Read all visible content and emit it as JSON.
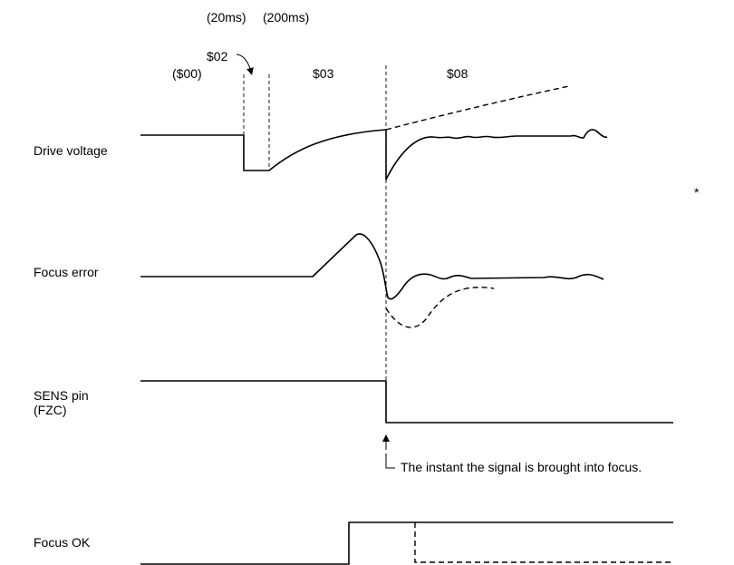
{
  "timing_labels": {
    "t1": "(20ms)",
    "t2": "(200ms)"
  },
  "state_labels": {
    "s02": "$02",
    "s00": "($00)",
    "s03": "$03",
    "s08": "$08"
  },
  "signals": {
    "drive_voltage": "Drive voltage",
    "focus_error": "Focus error",
    "sens_line1": "SENS pin",
    "sens_line2": "(FZC)",
    "focus_ok": "Focus OK"
  },
  "annotation": "The instant the signal is brought into focus.",
  "asterisk": "*"
}
